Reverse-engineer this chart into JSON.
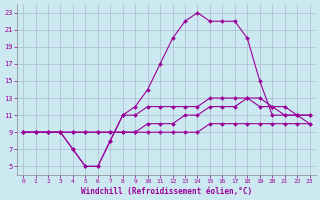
{
  "xlabel": "Windchill (Refroidissement éolien,°C)",
  "background_color": "#cce8f0",
  "line_color": "#990099",
  "grid_color": "#aabbcc",
  "xlim": [
    -0.5,
    23.5
  ],
  "ylim": [
    4,
    24
  ],
  "xticks": [
    0,
    1,
    2,
    3,
    4,
    5,
    6,
    7,
    8,
    9,
    10,
    11,
    12,
    13,
    14,
    15,
    16,
    17,
    18,
    19,
    20,
    21,
    22,
    23
  ],
  "yticks": [
    5,
    7,
    9,
    11,
    13,
    15,
    17,
    19,
    21,
    23
  ],
  "series": [
    {
      "x": [
        0,
        1,
        2,
        3,
        4,
        5,
        6,
        7,
        8,
        9,
        10,
        11,
        12,
        13,
        14,
        15,
        16,
        17,
        18,
        19,
        20,
        21,
        22,
        23
      ],
      "y": [
        9,
        9,
        9,
        9,
        7,
        5,
        5,
        8,
        11,
        12,
        14,
        17,
        20,
        22,
        23,
        22,
        22,
        22,
        20,
        15,
        11,
        11,
        11,
        10
      ]
    },
    {
      "x": [
        0,
        1,
        2,
        3,
        4,
        5,
        6,
        7,
        8,
        9,
        10,
        11,
        12,
        13,
        14,
        15,
        16,
        17,
        18,
        19,
        20,
        21,
        22,
        23
      ],
      "y": [
        9,
        9,
        9,
        9,
        7,
        5,
        5,
        8,
        11,
        11,
        12,
        12,
        12,
        12,
        12,
        13,
        13,
        13,
        13,
        12,
        12,
        11,
        11,
        11
      ]
    },
    {
      "x": [
        0,
        1,
        2,
        3,
        4,
        5,
        6,
        7,
        8,
        9,
        10,
        11,
        12,
        13,
        14,
        15,
        16,
        17,
        18,
        19,
        20,
        21,
        22,
        23
      ],
      "y": [
        9,
        9,
        9,
        9,
        9,
        9,
        9,
        9,
        9,
        9,
        10,
        10,
        10,
        11,
        11,
        12,
        12,
        12,
        13,
        13,
        12,
        12,
        11,
        11
      ]
    },
    {
      "x": [
        0,
        1,
        2,
        3,
        4,
        5,
        6,
        7,
        8,
        9,
        10,
        11,
        12,
        13,
        14,
        15,
        16,
        17,
        18,
        19,
        20,
        21,
        22,
        23
      ],
      "y": [
        9,
        9,
        9,
        9,
        9,
        9,
        9,
        9,
        9,
        9,
        9,
        9,
        9,
        9,
        9,
        10,
        10,
        10,
        10,
        10,
        10,
        10,
        10,
        10
      ]
    }
  ]
}
